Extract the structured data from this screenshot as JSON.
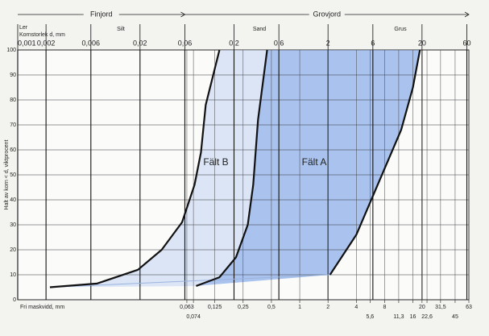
{
  "chart_data": {
    "type": "grading-curve",
    "top_groups": [
      "Finjord",
      "Grovjord"
    ],
    "top_axis_label": "Kornstorlek d, mm",
    "zones": [
      "Ler",
      "Silt",
      "Sand",
      "Grus"
    ],
    "ylabel": "Halt av korn < d, viktprocent",
    "xlabel": "Fri maskvidd, mm",
    "log_x": true,
    "xlim": [
      0.001,
      63
    ],
    "ylim": [
      0,
      100
    ],
    "yticks": [
      0,
      10,
      20,
      30,
      40,
      50,
      60,
      70,
      80,
      90,
      100
    ],
    "xticks": [
      {
        "value": 0.001,
        "label": "0,001"
      },
      {
        "value": 0.002,
        "label": "0,002"
      },
      {
        "value": 0.006,
        "label": "0,006"
      },
      {
        "value": 0.02,
        "label": "0,02"
      },
      {
        "value": 0.06,
        "label": "0,06"
      },
      {
        "value": 0.2,
        "label": "0,2"
      },
      {
        "value": 0.6,
        "label": "0,6"
      },
      2,
      6,
      20,
      60
    ],
    "sieve_ticks": [
      {
        "value": 0.063,
        "label": "0,063"
      },
      {
        "value": 0.125,
        "label": "0,125"
      },
      {
        "value": 0.25,
        "label": "0,25"
      },
      {
        "value": 0.5,
        "label": "0,5"
      },
      1,
      2,
      4,
      8,
      20,
      {
        "value": 31.5,
        "label": "31,5"
      },
      63
    ],
    "sieve_ticks_2": [
      {
        "value": 0.074,
        "label": "0,074"
      },
      {
        "value": 5.6,
        "label": "5,6"
      },
      {
        "value": 11.3,
        "label": "11,3"
      },
      16,
      {
        "value": 22.6,
        "label": "22,6"
      },
      45
    ],
    "grid": true,
    "curves": [
      {
        "x": [
          0.0022,
          0.007,
          0.019,
          0.034,
          0.056,
          0.076,
          0.089,
          0.1,
          0.14
        ],
        "values": [
          5,
          6.5,
          12,
          20,
          31,
          46,
          59,
          78,
          100
        ]
      },
      {
        "x": [
          0.079,
          0.14,
          0.21,
          0.28,
          0.32,
          0.36,
          0.45
        ],
        "values": [
          5.5,
          9,
          17,
          30,
          46,
          72,
          100
        ]
      },
      {
        "x": [
          2.1,
          4,
          7.3,
          12,
          16,
          19
        ],
        "values": [
          10,
          26,
          49,
          68,
          85,
          100
        ]
      }
    ],
    "series": [
      {
        "name": "Fält B",
        "color": "#dbe5f6"
      },
      {
        "name": "Fält A",
        "color": "#a9c3ee"
      }
    ]
  }
}
